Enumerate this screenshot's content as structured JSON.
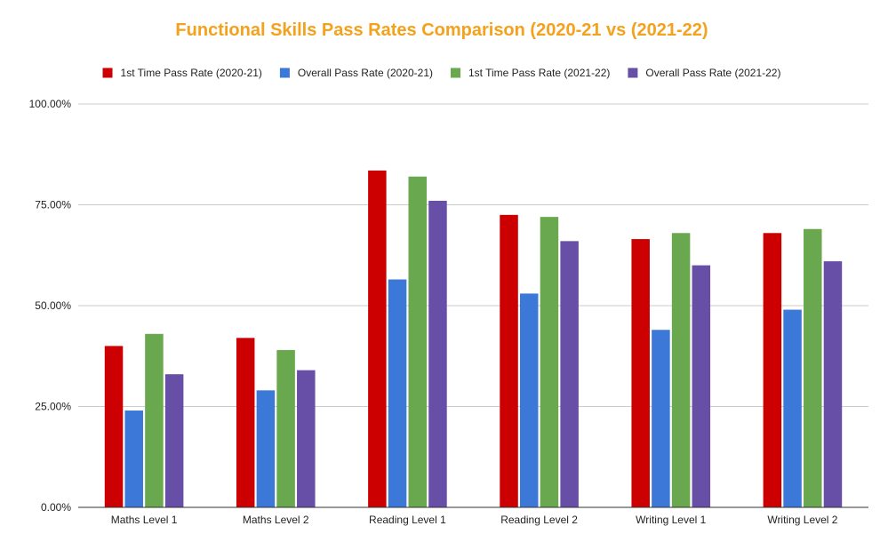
{
  "chart_data": {
    "type": "bar",
    "title": "Functional Skills Pass Rates Comparison (2020-21 vs (2021-22)",
    "xlabel": "",
    "ylabel": "",
    "ylim": [
      0,
      100
    ],
    "yticks": [
      "0.00%",
      "25.00%",
      "50.00%",
      "75.00%",
      "100.00%"
    ],
    "ytick_values": [
      0,
      25,
      50,
      75,
      100
    ],
    "grid": true,
    "legend_position": "top",
    "categories": [
      "Maths Level 1",
      "Maths Level 2",
      "Reading Level 1",
      "Reading Level 2",
      "Writing Level 1",
      "Writing Level 2"
    ],
    "series": [
      {
        "name": "1st Time Pass Rate (2020-21)",
        "color": "#cc0000",
        "values": [
          40,
          42,
          83.5,
          72.5,
          66.5,
          68
        ]
      },
      {
        "name": "Overall Pass Rate (2020-21)",
        "color": "#3c78d8",
        "values": [
          24,
          29,
          56.5,
          53,
          44,
          49
        ]
      },
      {
        "name": "1st Time Pass Rate (2021-22)",
        "color": "#6aa84f",
        "values": [
          43,
          39,
          82,
          72,
          68,
          69
        ]
      },
      {
        "name": "Overall Pass Rate (2021-22)",
        "color": "#674ea7",
        "values": [
          33,
          34,
          76,
          66,
          60,
          61
        ]
      }
    ],
    "title_color": "#f4a11c",
    "grid_color": "#cccccc",
    "axis_color": "#333333"
  }
}
